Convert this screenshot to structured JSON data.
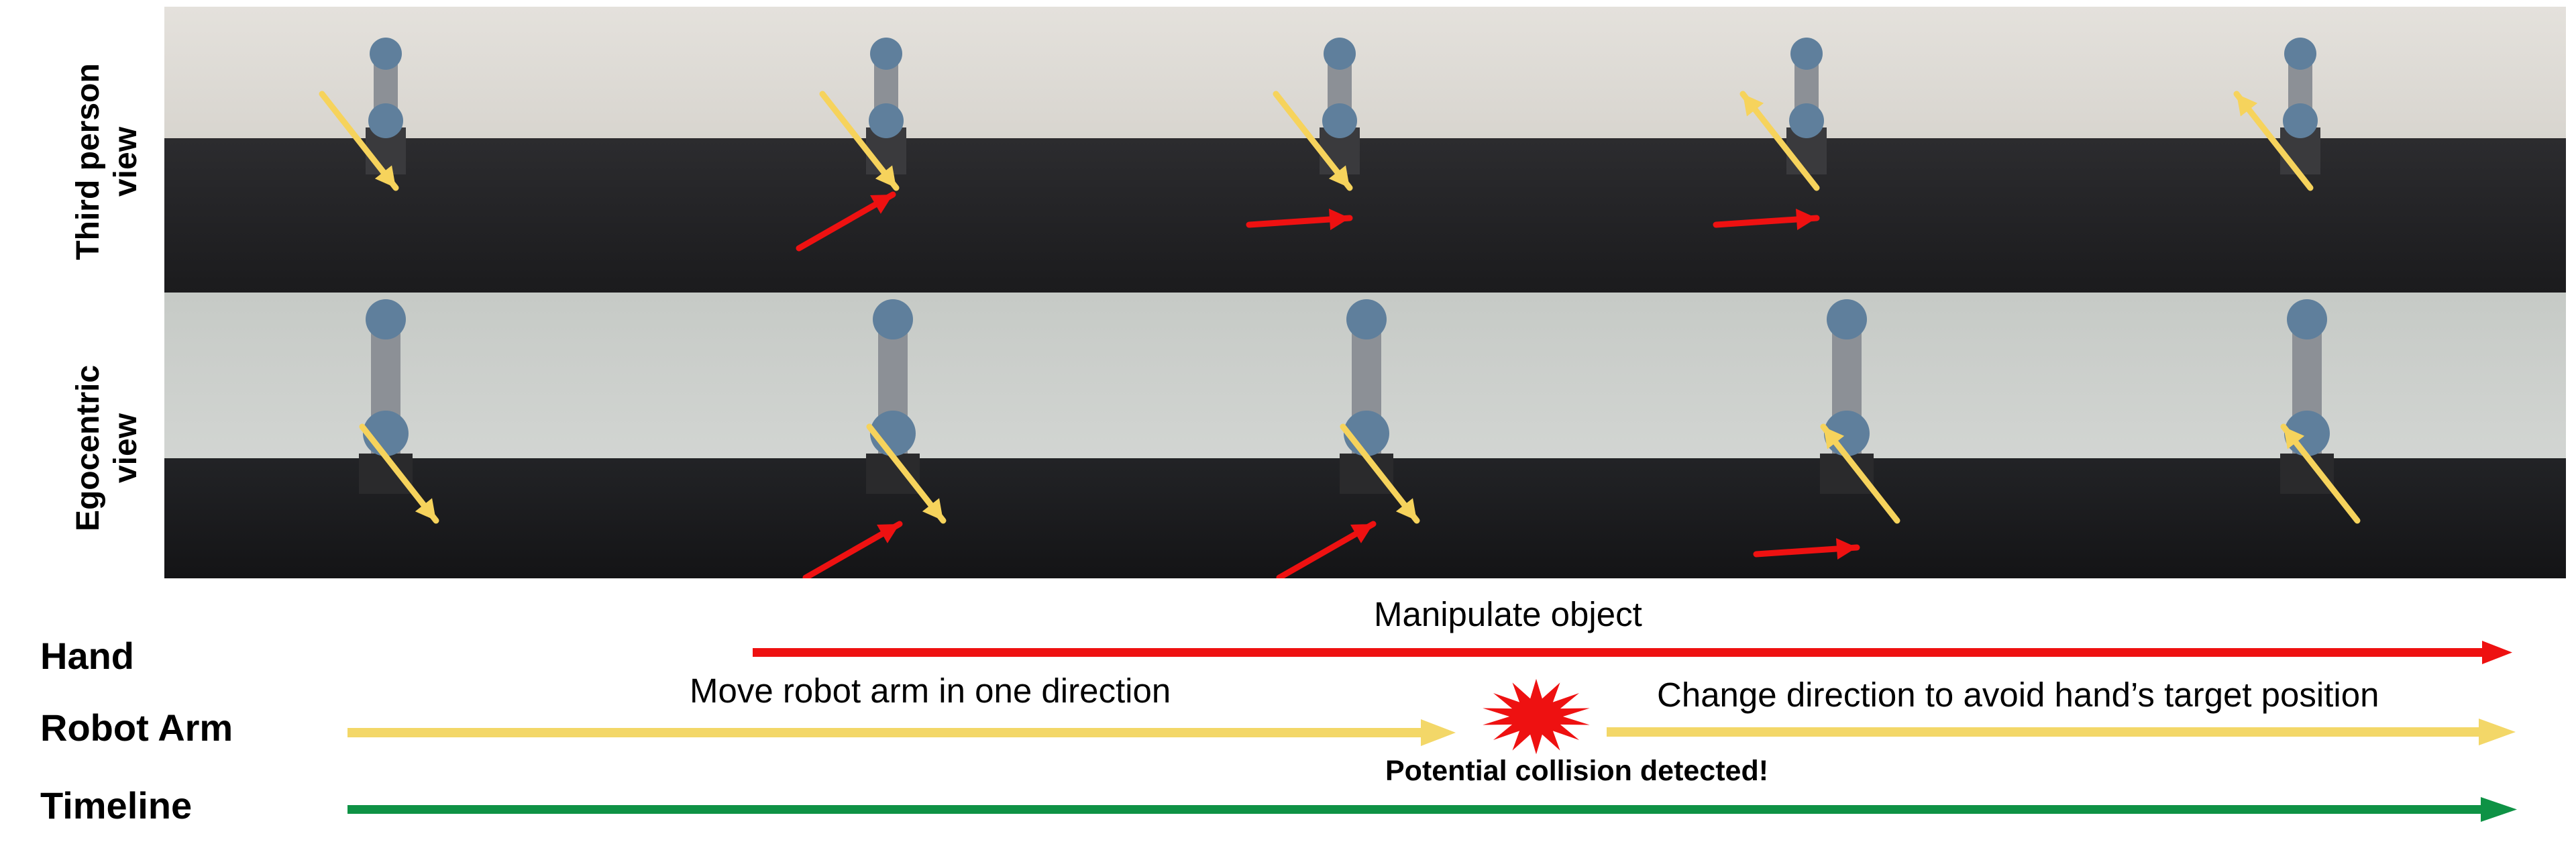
{
  "row_labels": {
    "third_person": "Third person\nview",
    "egocentric": "Egocentric\nview"
  },
  "frames": {
    "third_person": [
      {
        "arrows": [
          {
            "color": "yellow",
            "dir": "down-right"
          }
        ]
      },
      {
        "arrows": [
          {
            "color": "yellow",
            "dir": "down-right"
          },
          {
            "color": "red",
            "dir": "up-right"
          }
        ]
      },
      {
        "arrows": [
          {
            "color": "yellow",
            "dir": "down-right"
          },
          {
            "color": "red",
            "dir": "right"
          }
        ]
      },
      {
        "arrows": [
          {
            "color": "yellow",
            "dir": "up-left"
          },
          {
            "color": "red",
            "dir": "right"
          }
        ]
      },
      {
        "arrows": [
          {
            "color": "yellow",
            "dir": "up-left"
          }
        ]
      }
    ],
    "egocentric": [
      {
        "arrows": [
          {
            "color": "yellow",
            "dir": "down-right"
          }
        ]
      },
      {
        "arrows": [
          {
            "color": "yellow",
            "dir": "down-right"
          },
          {
            "color": "red",
            "dir": "up-right"
          }
        ]
      },
      {
        "arrows": [
          {
            "color": "yellow",
            "dir": "down-right"
          },
          {
            "color": "red",
            "dir": "up-right"
          }
        ]
      },
      {
        "arrows": [
          {
            "color": "yellow",
            "dir": "up-left"
          },
          {
            "color": "red",
            "dir": "right"
          }
        ]
      },
      {
        "arrows": [
          {
            "color": "yellow",
            "dir": "up-left"
          }
        ]
      }
    ]
  },
  "timeline": {
    "hand_label": "Hand",
    "robot_label": "Robot Arm",
    "timeline_label": "Timeline",
    "hand_caption": "Manipulate object",
    "robot_caption_1": "Move robot arm in one direction",
    "robot_caption_2": "Change direction to avoid hand’s target position",
    "collision_caption": "Potential collision detected!"
  },
  "colors": {
    "hand_arrow": "#ee1111",
    "robot_arrow": "#f3d768",
    "timeline_arrow": "#0e9245",
    "collision_burst": "#ee1111",
    "overlay_yellow": "#f6d35c",
    "overlay_red": "#ee1111"
  }
}
